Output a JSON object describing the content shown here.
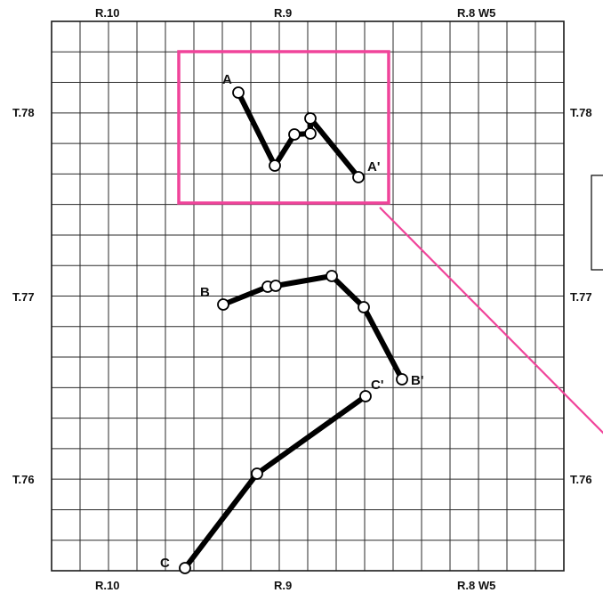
{
  "map": {
    "ranges_top": [
      "R.10",
      "R.9",
      "R.8 W5"
    ],
    "ranges_bottom": [
      "R.10",
      "R.9",
      "R.8 W5"
    ],
    "townships_left": [
      "T.78",
      "T.77",
      "T.76"
    ],
    "townships_right": [
      "T.78",
      "T.77",
      "T.76"
    ],
    "colors": {
      "highlight": "#f0449a",
      "line": "#000000",
      "grid": "#2a2a2a"
    },
    "profiles": [
      {
        "name": "A-A'",
        "start_label": "A",
        "end_label": "A'"
      },
      {
        "name": "B-B'",
        "start_label": "B",
        "end_label": "B'"
      },
      {
        "name": "C-C'",
        "start_label": "C",
        "end_label": "C'"
      }
    ]
  }
}
